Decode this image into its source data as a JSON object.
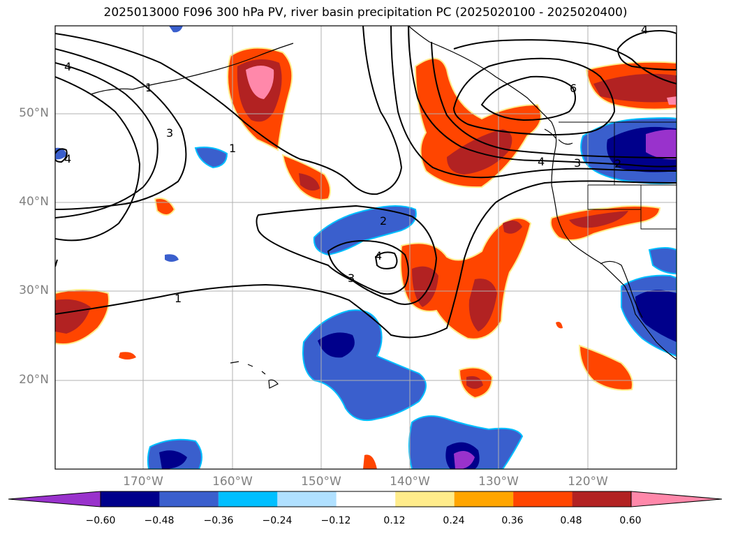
{
  "title": "2025013000 F096 300 hPa PV, river basin precipitation PC (2025020100 - 2025020400)",
  "map": {
    "lat_labels": [
      "50°N",
      "40°N",
      "30°N",
      "20°N"
    ],
    "lon_labels": [
      "170°W",
      "160°W",
      "150°W",
      "140°W",
      "130°W",
      "120°W"
    ],
    "contour_labels": [
      "4",
      "1",
      "3",
      "1",
      "4",
      "2",
      "3",
      "4",
      "1",
      "6",
      "4",
      "3",
      "2",
      "4"
    ],
    "colors": {
      "neg_deep": "#9932cc",
      "neg_navy": "#00008b",
      "neg_blue": "#3a5fcd",
      "neg_sky": "#00bfff",
      "neg_light": "#b0e0ff",
      "pos_yellow": "#ffec8b",
      "pos_orange": "#ffa500",
      "pos_redorange": "#ff4500",
      "pos_firebrick": "#b22222",
      "pos_pink": "#ff88aa"
    }
  },
  "colorbar": {
    "ticks": [
      "−0.60",
      "−0.48",
      "−0.36",
      "−0.24",
      "−0.12",
      "0.12",
      "0.24",
      "0.36",
      "0.48",
      "0.60"
    ],
    "colors": [
      "#9932cc",
      "#00008b",
      "#3a5fcd",
      "#00bfff",
      "#b0e0ff",
      "#ffffff",
      "#ffec8b",
      "#ffa500",
      "#ff4500",
      "#b22222",
      "#ff88aa"
    ]
  }
}
